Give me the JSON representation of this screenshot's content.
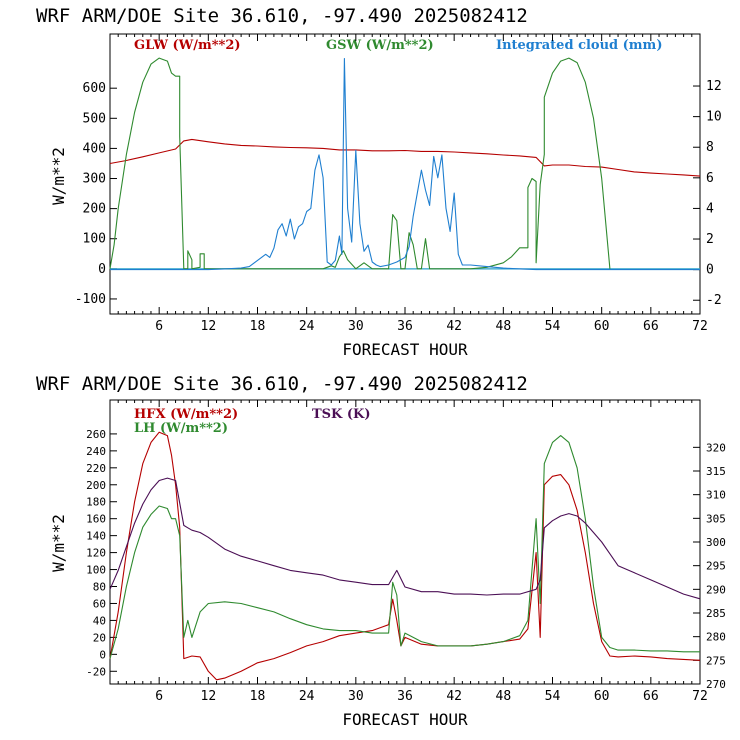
{
  "colors": {
    "red": "#b50000",
    "green": "#2f8a2f",
    "blue": "#1f7fd0",
    "purple": "#4b0f55",
    "cyan": "#2aa0c8"
  },
  "chart_data": [
    {
      "type": "line",
      "title": "WRF  ARM/DOE Site  36.610, -97.490  2025082412",
      "xlabel": "FORECAST HOUR",
      "ylabel": "W/m**2",
      "xlim": [
        0,
        72
      ],
      "ylim": [
        -150,
        780
      ],
      "y2lim": [
        -2.9,
        15.4
      ],
      "xticks": [
        6,
        12,
        18,
        24,
        30,
        36,
        42,
        48,
        54,
        60,
        66,
        72
      ],
      "xtick_labels": [
        "6",
        "12",
        "18",
        "24",
        "30",
        "36",
        "42",
        "48",
        "54",
        "60",
        "66",
        "72"
      ],
      "yticks": [
        -100,
        0,
        100,
        200,
        300,
        400,
        500,
        600
      ],
      "ytick_labels": [
        "-100",
        "0",
        "100",
        "200",
        "300",
        "400",
        "500",
        "600"
      ],
      "y2ticks": [
        -2,
        0,
        2,
        4,
        6,
        8,
        10,
        12
      ],
      "y2tick_labels": [
        "-2",
        "0",
        "2",
        "4",
        "6",
        "8",
        "10",
        "12"
      ],
      "zero_line": 0,
      "series": [
        {
          "name": "GLW (W/m**2)",
          "color": "#b50000",
          "axis": "left",
          "x": [
            0,
            2,
            4,
            6,
            8,
            9,
            10,
            12,
            14,
            16,
            18,
            20,
            22,
            24,
            26,
            28,
            30,
            32,
            34,
            36,
            38,
            40,
            42,
            44,
            46,
            48,
            50,
            52,
            53,
            54,
            56,
            58,
            60,
            62,
            64,
            66,
            68,
            70,
            72
          ],
          "y": [
            350,
            360,
            372,
            385,
            398,
            425,
            430,
            422,
            415,
            410,
            408,
            405,
            403,
            402,
            400,
            395,
            395,
            392,
            392,
            393,
            390,
            390,
            388,
            385,
            382,
            378,
            375,
            370,
            342,
            345,
            345,
            340,
            338,
            330,
            322,
            318,
            315,
            312,
            308
          ]
        },
        {
          "name": "GSW (W/m**2)",
          "color": "#2f8a2f",
          "axis": "left",
          "x": [
            0,
            0.5,
            1,
            2,
            3,
            4,
            5,
            6,
            7,
            7.5,
            8,
            8.5,
            8.5,
            9,
            9.5,
            9.5,
            10,
            10,
            11,
            11,
            11.5,
            11.5,
            12,
            26,
            27,
            27.5,
            28,
            28.5,
            29,
            30,
            31,
            32,
            34,
            34.5,
            35,
            35.5,
            36,
            36.5,
            37,
            37.5,
            38,
            38.5,
            39,
            40,
            41,
            42,
            44,
            46,
            48,
            49,
            50,
            51,
            51,
            51.5,
            52,
            52,
            52.5,
            53,
            53,
            54,
            55,
            56,
            57,
            58,
            59,
            60,
            61
          ],
          "y": [
            0,
            80,
            200,
            380,
            520,
            620,
            680,
            700,
            690,
            650,
            640,
            640,
            440,
            0,
            0,
            60,
            30,
            0,
            5,
            50,
            50,
            0,
            0,
            0,
            10,
            5,
            40,
            60,
            30,
            0,
            20,
            0,
            0,
            180,
            160,
            0,
            0,
            120,
            80,
            0,
            0,
            100,
            0,
            0,
            0,
            0,
            0,
            5,
            20,
            40,
            70,
            70,
            270,
            300,
            290,
            20,
            280,
            380,
            570,
            650,
            690,
            700,
            685,
            620,
            500,
            300,
            0
          ]
        },
        {
          "name": "Integrated cloud (mm)",
          "color": "#1f7fd0",
          "axis": "right",
          "x": [
            0,
            12,
            14,
            16,
            17,
            18,
            19,
            19.5,
            20,
            20.5,
            21,
            21.5,
            22,
            22.5,
            23,
            23.5,
            24,
            24.5,
            25,
            25.5,
            26,
            26.5,
            27,
            27.5,
            28,
            28.3,
            28.6,
            29,
            29.5,
            30,
            30.5,
            31,
            31.5,
            32,
            32.5,
            33,
            34,
            35,
            36,
            36.5,
            37,
            37.5,
            38,
            38.5,
            39,
            39.5,
            40,
            40.5,
            41,
            41.5,
            42,
            42.5,
            43,
            44,
            46,
            48,
            50,
            52,
            72
          ],
          "y": [
            0,
            0,
            0.05,
            0.1,
            0.2,
            0.6,
            1.0,
            0.8,
            1.4,
            2.6,
            3.0,
            2.2,
            3.3,
            2.0,
            2.8,
            3.0,
            3.8,
            4.0,
            6.5,
            7.5,
            6.0,
            0.5,
            0.3,
            0.6,
            2.2,
            1.0,
            13.8,
            4.0,
            1.8,
            7.8,
            3.0,
            1.2,
            1.6,
            0.5,
            0.3,
            0.2,
            0.3,
            0.5,
            0.8,
            1.5,
            3.5,
            5.0,
            6.5,
            5.2,
            4.2,
            7.4,
            6.0,
            7.5,
            4.0,
            2.5,
            5.0,
            1.0,
            0.3,
            0.3,
            0.2,
            0.1,
            0.05,
            0,
            0
          ]
        }
      ]
    },
    {
      "type": "line",
      "title": "WRF  ARM/DOE Site  36.610, -97.490  2025082412",
      "xlabel": "FORECAST HOUR",
      "ylabel": "W/m**2",
      "xlim": [
        0,
        72
      ],
      "ylim": [
        -35,
        300
      ],
      "y2lim": [
        270,
        330
      ],
      "xticks": [
        6,
        12,
        18,
        24,
        30,
        36,
        42,
        48,
        54,
        60,
        66,
        72
      ],
      "xtick_labels": [
        "6",
        "12",
        "18",
        "24",
        "30",
        "36",
        "42",
        "48",
        "54",
        "60",
        "66",
        "72"
      ],
      "yticks": [
        -20,
        0,
        20,
        40,
        60,
        80,
        100,
        120,
        140,
        160,
        180,
        200,
        220,
        240,
        260
      ],
      "ytick_labels": [
        "-20",
        "0",
        "20",
        "40",
        "60",
        "80",
        "100",
        "120",
        "140",
        "160",
        "180",
        "200",
        "220",
        "240",
        "260"
      ],
      "y2ticks": [
        270,
        275,
        280,
        285,
        290,
        295,
        300,
        305,
        310,
        315,
        320
      ],
      "y2tick_labels": [
        "270",
        "275",
        "280",
        "285",
        "290",
        "295",
        "300",
        "305",
        "310",
        "315",
        "320"
      ],
      "series": [
        {
          "name": "HFX (W/m**2)",
          "color": "#b50000",
          "axis": "left",
          "x": [
            0,
            1,
            2,
            3,
            4,
            5,
            6,
            7,
            7.5,
            8,
            8.5,
            9,
            10,
            11,
            12,
            13,
            14,
            16,
            18,
            20,
            22,
            24,
            26,
            28,
            30,
            32,
            34,
            34.5,
            35,
            35.5,
            36,
            38,
            40,
            42,
            44,
            46,
            48,
            50,
            51,
            52,
            52.5,
            53,
            54,
            55,
            56,
            57,
            58,
            59,
            60,
            61,
            62,
            64,
            66,
            68,
            70,
            72
          ],
          "y": [
            -5,
            50,
            120,
            180,
            225,
            250,
            262,
            258,
            235,
            200,
            150,
            -5,
            -2,
            -3,
            -20,
            -30,
            -28,
            -20,
            -10,
            -5,
            2,
            10,
            15,
            22,
            25,
            28,
            35,
            65,
            40,
            10,
            20,
            12,
            10,
            10,
            10,
            12,
            15,
            18,
            30,
            120,
            20,
            200,
            210,
            212,
            200,
            170,
            120,
            60,
            15,
            -2,
            -3,
            -2,
            -3,
            -5,
            -6,
            -7
          ]
        },
        {
          "name": "LH (W/m**2)",
          "color": "#2f8a2f",
          "axis": "left",
          "x": [
            0,
            1,
            2,
            3,
            4,
            5,
            6,
            7,
            7.5,
            8,
            8.5,
            9,
            9.5,
            10,
            11,
            12,
            14,
            16,
            18,
            20,
            22,
            24,
            26,
            28,
            30,
            32,
            34,
            34.5,
            35,
            35.5,
            36,
            38,
            40,
            42,
            44,
            46,
            48,
            50,
            51,
            52,
            52.5,
            53,
            54,
            55,
            56,
            57,
            58,
            59,
            60,
            61,
            62,
            64,
            66,
            68,
            70,
            72
          ],
          "y": [
            -5,
            30,
            80,
            120,
            150,
            165,
            175,
            172,
            160,
            160,
            140,
            20,
            40,
            20,
            50,
            60,
            62,
            60,
            55,
            50,
            42,
            35,
            30,
            28,
            28,
            25,
            25,
            85,
            70,
            10,
            25,
            15,
            10,
            10,
            10,
            12,
            15,
            22,
            40,
            160,
            60,
            225,
            250,
            258,
            250,
            220,
            160,
            80,
            20,
            8,
            5,
            5,
            4,
            4,
            3,
            3
          ]
        },
        {
          "name": "TSK (K)",
          "color": "#4b0f55",
          "axis": "right",
          "x": [
            0,
            1,
            2,
            3,
            4,
            5,
            6,
            7,
            8,
            9,
            9.5,
            10,
            11,
            12,
            14,
            16,
            18,
            20,
            22,
            24,
            26,
            28,
            30,
            32,
            34,
            35,
            36,
            38,
            40,
            42,
            44,
            46,
            48,
            50,
            52,
            52.5,
            53,
            54,
            55,
            56,
            57,
            58,
            59,
            60,
            61,
            62,
            64,
            66,
            68,
            70,
            72
          ],
          "y": [
            290,
            294,
            299,
            304,
            308,
            311,
            313,
            313.5,
            313,
            303.5,
            303,
            302.5,
            302,
            301,
            298.5,
            297,
            296,
            295,
            294,
            293.5,
            293,
            292,
            291.5,
            291,
            291,
            294,
            290.5,
            289.5,
            289.5,
            289,
            289,
            288.8,
            289,
            289,
            290,
            292,
            303,
            304.5,
            305.5,
            306,
            305.5,
            304,
            302,
            300,
            297.5,
            295,
            293.5,
            292,
            290.5,
            289,
            288
          ]
        }
      ]
    }
  ]
}
